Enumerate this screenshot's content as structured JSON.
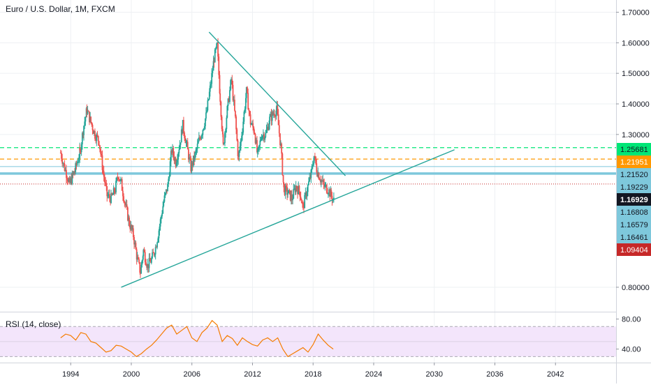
{
  "header": {
    "title": "Euro / U.S. Dollar, 1M, FXCM"
  },
  "rsi_pane": {
    "title": "RSI (14, close)"
  },
  "colors": {
    "up": "#26a69a",
    "down": "#ef5350",
    "rsi_line": "#f57c00",
    "rsi_band": "#f3e5fb",
    "trendline": "#26a69a",
    "green_level": "#00e676",
    "orange_level": "#ff9800",
    "blue_level": "#7ec8dc",
    "red_level": "#c62828",
    "axis_text": "#131722",
    "grid": "#eef0f3"
  },
  "chart_data": [
    {
      "type": "candlestick",
      "title": "Euro / U.S. Dollar, 1M, FXCM",
      "x_ticks": [
        "1994",
        "2000",
        "2006",
        "2012",
        "2018",
        "2024",
        "2030",
        "2036",
        "2042"
      ],
      "y_ticks": [
        {
          "label": "1.70000",
          "value": 1.7
        },
        {
          "label": "1.60000",
          "value": 1.6
        },
        {
          "label": "1.50000",
          "value": 1.5
        },
        {
          "label": "1.40000",
          "value": 1.4
        },
        {
          "label": "1.30000",
          "value": 1.3
        },
        {
          "label": "0.80000",
          "value": 0.8
        }
      ],
      "xlim": [
        1987,
        2048
      ],
      "ylim": [
        0.72,
        1.74
      ],
      "price_markers": [
        {
          "label": "1.25681",
          "value": 1.2568,
          "style": "green"
        },
        {
          "label": "1.21951",
          "value": 1.2195,
          "style": "orange"
        },
        {
          "label": "1.21520",
          "value": 1.2152,
          "style": "blue"
        },
        {
          "label": "1.19229",
          "value": 1.1923,
          "style": "blue"
        },
        {
          "label": "1.16929",
          "value": 1.1693,
          "style": "black"
        },
        {
          "label": "1.16808",
          "value": 1.1681,
          "style": "blue"
        },
        {
          "label": "1.16579",
          "value": 1.1658,
          "style": "blue"
        },
        {
          "label": "1.16461",
          "value": 1.1646,
          "style": "blue"
        },
        {
          "label": "1.09404",
          "value": 1.094,
          "style": "red"
        }
      ],
      "horizontal_lines": [
        {
          "value": 1.2568,
          "style": "green-dashed"
        },
        {
          "value": 1.2195,
          "style": "orange-dashed"
        },
        {
          "value": 1.195,
          "style": "blue-thin"
        },
        {
          "value": 1.172,
          "style": "blue-thick"
        },
        {
          "value": 1.138,
          "style": "red-dotted"
        }
      ],
      "trendlines": [
        {
          "x": [
            2007.7,
            2021.2
          ],
          "y": [
            1.635,
            1.165
          ]
        },
        {
          "x": [
            1999.0,
            2032.0
          ],
          "y": [
            0.8,
            1.25
          ]
        }
      ],
      "price_path": [
        {
          "x": 1993.0,
          "y": 1.24
        },
        {
          "x": 1993.4,
          "y": 1.19
        },
        {
          "x": 1993.9,
          "y": 1.14
        },
        {
          "x": 1994.4,
          "y": 1.18
        },
        {
          "x": 1994.9,
          "y": 1.24
        },
        {
          "x": 1995.3,
          "y": 1.33
        },
        {
          "x": 1995.6,
          "y": 1.38
        },
        {
          "x": 1996.0,
          "y": 1.34
        },
        {
          "x": 1996.4,
          "y": 1.3
        },
        {
          "x": 1996.8,
          "y": 1.28
        },
        {
          "x": 1997.2,
          "y": 1.18
        },
        {
          "x": 1997.6,
          "y": 1.1
        },
        {
          "x": 1998.0,
          "y": 1.09
        },
        {
          "x": 1998.4,
          "y": 1.12
        },
        {
          "x": 1998.7,
          "y": 1.17
        },
        {
          "x": 1999.0,
          "y": 1.14
        },
        {
          "x": 1999.4,
          "y": 1.07
        },
        {
          "x": 1999.8,
          "y": 1.01
        },
        {
          "x": 2000.2,
          "y": 0.97
        },
        {
          "x": 2000.6,
          "y": 0.89
        },
        {
          "x": 2000.9,
          "y": 0.85
        },
        {
          "x": 2001.2,
          "y": 0.92
        },
        {
          "x": 2001.6,
          "y": 0.87
        },
        {
          "x": 2002.0,
          "y": 0.89
        },
        {
          "x": 2002.4,
          "y": 0.93
        },
        {
          "x": 2002.8,
          "y": 1.0
        },
        {
          "x": 2003.2,
          "y": 1.08
        },
        {
          "x": 2003.6,
          "y": 1.13
        },
        {
          "x": 2004.0,
          "y": 1.25
        },
        {
          "x": 2004.4,
          "y": 1.21
        },
        {
          "x": 2004.8,
          "y": 1.27
        },
        {
          "x": 2005.1,
          "y": 1.33
        },
        {
          "x": 2005.5,
          "y": 1.26
        },
        {
          "x": 2005.9,
          "y": 1.19
        },
        {
          "x": 2006.3,
          "y": 1.23
        },
        {
          "x": 2006.7,
          "y": 1.28
        },
        {
          "x": 2007.0,
          "y": 1.31
        },
        {
          "x": 2007.4,
          "y": 1.36
        },
        {
          "x": 2007.8,
          "y": 1.45
        },
        {
          "x": 2008.2,
          "y": 1.55
        },
        {
          "x": 2008.5,
          "y": 1.59
        },
        {
          "x": 2008.8,
          "y": 1.42
        },
        {
          "x": 2009.1,
          "y": 1.26
        },
        {
          "x": 2009.5,
          "y": 1.38
        },
        {
          "x": 2009.9,
          "y": 1.48
        },
        {
          "x": 2010.3,
          "y": 1.35
        },
        {
          "x": 2010.6,
          "y": 1.22
        },
        {
          "x": 2011.0,
          "y": 1.32
        },
        {
          "x": 2011.4,
          "y": 1.44
        },
        {
          "x": 2011.8,
          "y": 1.34
        },
        {
          "x": 2012.2,
          "y": 1.31
        },
        {
          "x": 2012.5,
          "y": 1.23
        },
        {
          "x": 2012.9,
          "y": 1.3
        },
        {
          "x": 2013.3,
          "y": 1.3
        },
        {
          "x": 2013.7,
          "y": 1.35
        },
        {
          "x": 2014.1,
          "y": 1.37
        },
        {
          "x": 2014.4,
          "y": 1.38
        },
        {
          "x": 2014.8,
          "y": 1.26
        },
        {
          "x": 2015.1,
          "y": 1.12
        },
        {
          "x": 2015.5,
          "y": 1.11
        },
        {
          "x": 2015.9,
          "y": 1.09
        },
        {
          "x": 2016.3,
          "y": 1.13
        },
        {
          "x": 2016.7,
          "y": 1.11
        },
        {
          "x": 2017.0,
          "y": 1.06
        },
        {
          "x": 2017.4,
          "y": 1.12
        },
        {
          "x": 2017.8,
          "y": 1.17
        },
        {
          "x": 2018.1,
          "y": 1.23
        },
        {
          "x": 2018.4,
          "y": 1.18
        },
        {
          "x": 2018.8,
          "y": 1.15
        },
        {
          "x": 2019.1,
          "y": 1.13
        },
        {
          "x": 2019.5,
          "y": 1.12
        },
        {
          "x": 2019.8,
          "y": 1.1
        },
        {
          "x": 2020.1,
          "y": 1.08
        }
      ]
    },
    {
      "type": "line",
      "title": "RSI (14, close)",
      "y_ticks": [
        {
          "label": "80.00",
          "value": 80
        },
        {
          "label": "40.00",
          "value": 40
        }
      ],
      "ylim": [
        22,
        87
      ],
      "bands": {
        "upper": 70,
        "lower": 30
      },
      "x": [
        1993.0,
        1993.5,
        1994.0,
        1994.5,
        1995.0,
        1995.5,
        1996.0,
        1996.5,
        1997.0,
        1997.5,
        1998.0,
        1998.5,
        1999.0,
        1999.5,
        2000.0,
        2000.5,
        2001.0,
        2001.5,
        2002.0,
        2002.5,
        2003.0,
        2003.5,
        2004.0,
        2004.5,
        2005.0,
        2005.5,
        2006.0,
        2006.5,
        2007.0,
        2007.5,
        2008.0,
        2008.5,
        2009.0,
        2009.5,
        2010.0,
        2010.5,
        2011.0,
        2011.5,
        2012.0,
        2012.5,
        2013.0,
        2013.5,
        2014.0,
        2014.5,
        2015.0,
        2015.5,
        2016.0,
        2016.5,
        2017.0,
        2017.5,
        2018.0,
        2018.5,
        2019.0,
        2019.5,
        2020.0
      ],
      "values": [
        55,
        60,
        58,
        52,
        62,
        60,
        50,
        48,
        42,
        36,
        38,
        45,
        44,
        40,
        36,
        30,
        34,
        40,
        45,
        52,
        60,
        68,
        72,
        60,
        65,
        70,
        55,
        50,
        62,
        68,
        78,
        72,
        50,
        58,
        54,
        45,
        55,
        50,
        46,
        44,
        52,
        55,
        50,
        55,
        40,
        30,
        34,
        38,
        42,
        36,
        46,
        60,
        52,
        45,
        40
      ]
    }
  ]
}
